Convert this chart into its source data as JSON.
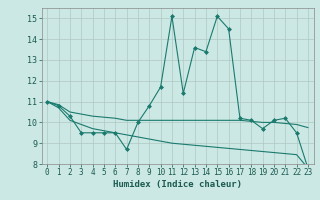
{
  "xlabel": "Humidex (Indice chaleur)",
  "ylabel": "",
  "background_color": "#cce8e4",
  "grid_color": "#b0c8c4",
  "line_color": "#1a7a6e",
  "xlim": [
    -0.5,
    23.5
  ],
  "ylim": [
    8,
    15.5
  ],
  "x_ticks": [
    0,
    1,
    2,
    3,
    4,
    5,
    6,
    7,
    8,
    9,
    10,
    11,
    12,
    13,
    14,
    15,
    16,
    17,
    18,
    19,
    20,
    21,
    22,
    23
  ],
  "y_ticks": [
    8,
    9,
    10,
    11,
    12,
    13,
    14,
    15
  ],
  "series1_x": [
    0,
    1,
    2,
    3,
    4,
    5,
    6,
    7,
    8,
    9,
    10,
    11,
    12,
    13,
    14,
    15,
    16,
    17,
    18,
    19,
    20,
    21,
    22,
    23
  ],
  "series1_y": [
    11.0,
    10.8,
    10.3,
    9.5,
    9.5,
    9.5,
    9.5,
    8.7,
    10.0,
    10.8,
    11.7,
    15.1,
    11.4,
    13.6,
    13.4,
    15.1,
    14.5,
    10.2,
    10.1,
    9.7,
    10.1,
    10.2,
    9.5,
    7.8
  ],
  "series2_x": [
    0,
    1,
    2,
    3,
    4,
    5,
    6,
    7,
    8,
    9,
    10,
    11,
    12,
    13,
    14,
    15,
    16,
    17,
    18,
    19,
    20,
    21,
    22,
    23
  ],
  "series2_y": [
    11.0,
    10.85,
    10.5,
    10.4,
    10.3,
    10.25,
    10.2,
    10.1,
    10.1,
    10.1,
    10.1,
    10.1,
    10.1,
    10.1,
    10.1,
    10.1,
    10.1,
    10.1,
    10.05,
    10.0,
    10.0,
    9.95,
    9.9,
    9.75
  ],
  "series3_x": [
    0,
    1,
    2,
    3,
    4,
    5,
    6,
    7,
    8,
    9,
    10,
    11,
    12,
    13,
    14,
    15,
    16,
    17,
    18,
    19,
    20,
    21,
    22,
    23
  ],
  "series3_y": [
    11.0,
    10.7,
    10.1,
    9.9,
    9.7,
    9.6,
    9.5,
    9.4,
    9.3,
    9.2,
    9.1,
    9.0,
    8.95,
    8.9,
    8.85,
    8.8,
    8.75,
    8.7,
    8.65,
    8.6,
    8.55,
    8.5,
    8.45,
    7.8
  ],
  "tick_fontsize": 5.5,
  "xlabel_fontsize": 6.5
}
